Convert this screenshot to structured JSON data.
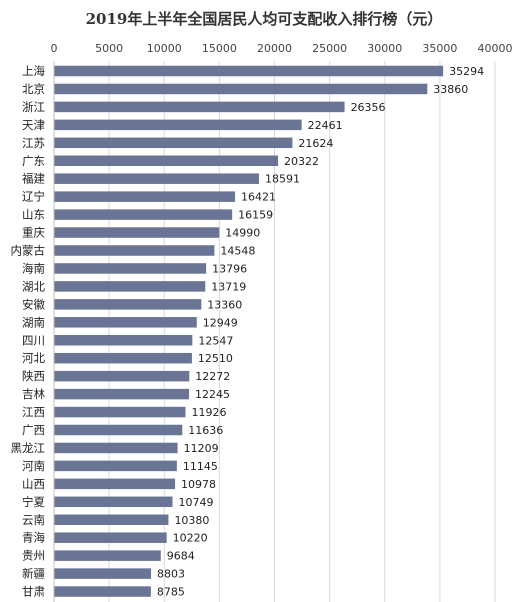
{
  "chart_data": {
    "type": "bar",
    "orientation": "horizontal",
    "title": "2019年上半年全国居民人均可支配收入排行榜（元）",
    "xlabel": "",
    "ylabel": "",
    "xlim": [
      0,
      40000
    ],
    "xticks": [
      0,
      5000,
      10000,
      15000,
      20000,
      25000,
      30000,
      35000,
      40000
    ],
    "axis_position": "top",
    "grid": true,
    "bar_color": "#6a7495",
    "categories": [
      "上海",
      "北京",
      "浙江",
      "天津",
      "江苏",
      "广东",
      "福建",
      "辽宁",
      "山东",
      "重庆",
      "内蒙古",
      "海南",
      "湖北",
      "安徽",
      "湖南",
      "四川",
      "河北",
      "陕西",
      "吉林",
      "江西",
      "广西",
      "黑龙江",
      "河南",
      "山西",
      "宁夏",
      "云南",
      "青海",
      "贵州",
      "新疆",
      "甘肃"
    ],
    "values": [
      35294,
      33860,
      26356,
      22461,
      21624,
      20322,
      18591,
      16421,
      16159,
      14990,
      14548,
      13796,
      13719,
      13360,
      12949,
      12547,
      12510,
      12272,
      12245,
      11926,
      11636,
      11209,
      11145,
      10978,
      10749,
      10380,
      10220,
      9684,
      8803,
      8785
    ]
  }
}
